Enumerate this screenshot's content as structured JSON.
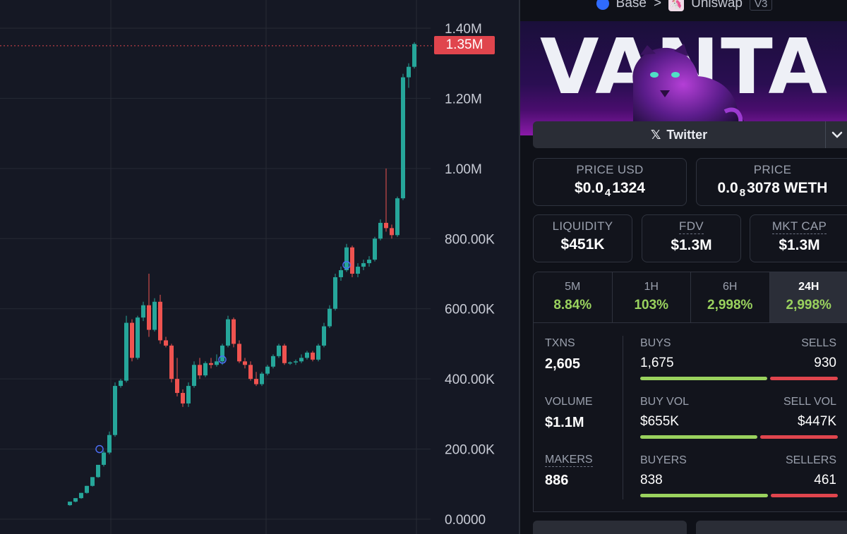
{
  "chart": {
    "y_ticks": [
      "1.40M",
      "1.20M",
      "1.00M",
      "800.00K",
      "600.00K",
      "400.00K",
      "200.00K",
      "0.0000"
    ],
    "current_price_label": "1.35M"
  },
  "chart_data": {
    "type": "candlestick",
    "ylim": [
      0,
      1400000
    ],
    "current_price": 1350000,
    "candles": [
      [
        40000,
        50000,
        38000,
        50000
      ],
      [
        50000,
        60000,
        48000,
        60000
      ],
      [
        60000,
        75000,
        58000,
        75000
      ],
      [
        75000,
        95000,
        73000,
        95000
      ],
      [
        95000,
        120000,
        93000,
        120000
      ],
      [
        120000,
        155000,
        118000,
        155000
      ],
      [
        155000,
        195000,
        150000,
        190000
      ],
      [
        190000,
        250000,
        185000,
        240000
      ],
      [
        240000,
        390000,
        235000,
        380000
      ],
      [
        380000,
        400000,
        375000,
        395000
      ],
      [
        395000,
        580000,
        390000,
        560000
      ],
      [
        560000,
        570000,
        450000,
        460000
      ],
      [
        460000,
        580000,
        455000,
        575000
      ],
      [
        575000,
        620000,
        565000,
        610000
      ],
      [
        610000,
        700000,
        520000,
        540000
      ],
      [
        540000,
        630000,
        535000,
        620000
      ],
      [
        620000,
        640000,
        500000,
        510000
      ],
      [
        510000,
        520000,
        490000,
        495000
      ],
      [
        495000,
        500000,
        390000,
        400000
      ],
      [
        400000,
        460000,
        350000,
        360000
      ],
      [
        360000,
        370000,
        320000,
        330000
      ],
      [
        330000,
        390000,
        320000,
        380000
      ],
      [
        380000,
        450000,
        375000,
        440000
      ],
      [
        440000,
        460000,
        400000,
        410000
      ],
      [
        410000,
        450000,
        405000,
        445000
      ],
      [
        445000,
        460000,
        430000,
        440000
      ],
      [
        440000,
        470000,
        435000,
        450000
      ],
      [
        450000,
        500000,
        440000,
        495000
      ],
      [
        495000,
        580000,
        490000,
        570000
      ],
      [
        570000,
        575000,
        490000,
        500000
      ],
      [
        500000,
        510000,
        445000,
        450000
      ],
      [
        450000,
        460000,
        430000,
        440000
      ],
      [
        440000,
        450000,
        395000,
        400000
      ],
      [
        400000,
        420000,
        380000,
        385000
      ],
      [
        385000,
        420000,
        380000,
        415000
      ],
      [
        415000,
        440000,
        410000,
        435000
      ],
      [
        435000,
        470000,
        430000,
        465000
      ],
      [
        465000,
        500000,
        460000,
        495000
      ],
      [
        495000,
        500000,
        440000,
        445000
      ],
      [
        445000,
        450000,
        440000,
        447000
      ],
      [
        447000,
        455000,
        440000,
        450000
      ],
      [
        450000,
        470000,
        445000,
        460000
      ],
      [
        460000,
        480000,
        455000,
        475000
      ],
      [
        475000,
        480000,
        450000,
        455000
      ],
      [
        455000,
        500000,
        450000,
        495000
      ],
      [
        495000,
        560000,
        490000,
        550000
      ],
      [
        550000,
        610000,
        545000,
        600000
      ],
      [
        600000,
        700000,
        595000,
        690000
      ],
      [
        690000,
        720000,
        680000,
        710000
      ],
      [
        710000,
        785000,
        705000,
        775000
      ],
      [
        775000,
        780000,
        690000,
        700000
      ],
      [
        700000,
        730000,
        690000,
        720000
      ],
      [
        720000,
        740000,
        710000,
        730000
      ],
      [
        730000,
        750000,
        720000,
        740000
      ],
      [
        740000,
        805000,
        735000,
        800000
      ],
      [
        800000,
        855000,
        795000,
        845000
      ],
      [
        845000,
        1000000,
        820000,
        830000
      ],
      [
        830000,
        840000,
        800000,
        810000
      ],
      [
        810000,
        920000,
        805000,
        915000
      ],
      [
        915000,
        1270000,
        910000,
        1260000
      ],
      [
        1260000,
        1300000,
        1230000,
        1290000
      ],
      [
        1290000,
        1360000,
        1285000,
        1355000
      ]
    ],
    "markers": [
      200000,
      455000,
      725000
    ]
  },
  "breadcrumb": {
    "chain": "Base",
    "separator": ">",
    "dex": "Uniswap",
    "version": "V3"
  },
  "banner": {
    "text": "VANTA"
  },
  "twitter": {
    "label": "Twitter"
  },
  "price_usd": {
    "label": "PRICE USD",
    "prefix": "$0.0",
    "sub": "4",
    "suffix": "1324"
  },
  "price_native": {
    "label": "PRICE",
    "prefix": "0.0",
    "sub": "8",
    "suffix": "3078 WETH"
  },
  "stats": [
    {
      "label": "LIQUIDITY",
      "value": "$451K"
    },
    {
      "label": "FDV",
      "value": "$1.3M"
    },
    {
      "label": "MKT CAP",
      "value": "$1.3M"
    }
  ],
  "timeframes": [
    {
      "label": "5M",
      "value": "8.84%"
    },
    {
      "label": "1H",
      "value": "103%"
    },
    {
      "label": "6H",
      "value": "2,998%"
    },
    {
      "label": "24H",
      "value": "2,998%"
    }
  ],
  "txns": {
    "label": "TXNS",
    "value": "2,605"
  },
  "volume": {
    "label": "VOLUME",
    "value": "$1.1M"
  },
  "makers": {
    "label": "MAKERS",
    "value": "886"
  },
  "buys": {
    "label": "BUYS",
    "value": "1,675",
    "ratio": 0.643
  },
  "sells": {
    "label": "SELLS",
    "value": "930"
  },
  "buy_vol": {
    "label": "BUY VOL",
    "value": "$655K",
    "ratio": 0.594
  },
  "sell_vol": {
    "label": "SELL VOL",
    "value": "$447K"
  },
  "buyers": {
    "label": "BUYERS",
    "value": "838",
    "ratio": 0.645
  },
  "sellers": {
    "label": "SELLERS",
    "value": "461"
  },
  "colors": {
    "up": "#26a69a",
    "down": "#ef5350",
    "positive": "#9ad25e",
    "sell": "#e0454d"
  }
}
